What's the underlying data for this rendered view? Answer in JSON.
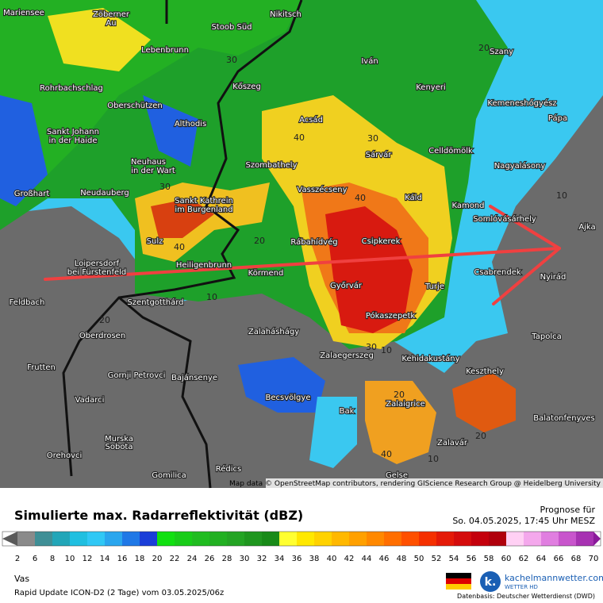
{
  "map": {
    "labels": [
      "Mariensee",
      "Zöberner",
      "Au",
      "Stoob Süd",
      "Nikitsch",
      "Lebenbrunn",
      "Iván",
      "Szany",
      "Rohrbachschlag",
      "Kőszeg",
      "Kenyeri",
      "Oberschützen",
      "Kemeneshőgyész",
      "Acsád",
      "Althodis",
      "Pápa",
      "Sankt Johann",
      "in der Haide",
      "Neuhaus",
      "in der Wart",
      "Szombathely",
      "Sárvár",
      "Celldömölk",
      "Nagyalásony",
      "Vasszécseny",
      "Neudauberg",
      "Großhart",
      "Sankt Kathrein",
      "im Burgenland",
      "Káld",
      "Kamond",
      "Somlóvásárhely",
      "Ajka",
      "Sulz",
      "Rábahídvég",
      "Csipkerek",
      "Heiligenbrunn",
      "Loipersdorf",
      "bei Fürstenfeld",
      "Körmend",
      "Csabrendek",
      "Nyirád",
      "Győrvár",
      "Turje",
      "Feldbach",
      "Szentgotthárd",
      "Pókaszepetk",
      "Oberdrosen",
      "Zalaháshágy",
      "Tapolca",
      "Zalaegerszeg",
      "Kehidakustány",
      "Frutten",
      "Gornji Petrovci",
      "Bajánsenye",
      "Keszthely",
      "Becsvölgye",
      "Vadarci",
      "Zalaigrice",
      "Balatonfenyves",
      "Bak",
      "Murska",
      "Sobota",
      "Zalavár",
      "Orehovci",
      "Rédics",
      "Gomilica",
      "Gelse"
    ],
    "isolines": [
      "30",
      "30",
      "40",
      "30",
      "40",
      "40",
      "20",
      "10",
      "20",
      "30",
      "10",
      "20",
      "40",
      "10",
      "20",
      "10",
      "20"
    ],
    "attribution": "Map data © OpenStreetMap contributors, rendering GIScience Research Group @ Heidelberg University"
  },
  "legend": {
    "title": "Simulierte max. Radarreflektivität (dBZ)",
    "forecast_label": "Prognose für",
    "forecast_time": "So. 04.05.2025, 17:45 Uhr MESZ",
    "region": "Vas",
    "model_run": "Rapid Update ICON-D2 (2 Tage) vom  03.05.2025/06z",
    "labels": [
      2,
      6,
      8,
      10,
      12,
      14,
      16,
      18,
      20,
      22,
      24,
      26,
      28,
      30,
      32,
      34,
      36,
      38,
      40,
      42,
      44,
      46,
      48,
      50,
      52,
      54,
      56,
      58,
      60,
      62,
      64,
      66,
      68,
      70
    ],
    "colors": [
      "#5a5a5a",
      "#8a8a8a",
      "#3f8f96",
      "#22a6b8",
      "#20bfe0",
      "#30c8f5",
      "#2aa6ee",
      "#1f78e6",
      "#1a3ed8",
      "#10e010",
      "#18cc18",
      "#20bc20",
      "#22b022",
      "#24a424",
      "#1f961f",
      "#188a18",
      "#ffff30",
      "#ffe800",
      "#ffd200",
      "#ffb800",
      "#ffa000",
      "#ff8800",
      "#ff6e00",
      "#ff5000",
      "#f53000",
      "#e41a08",
      "#d40c0c",
      "#c4000c",
      "#b0000c",
      "#ffd0f4",
      "#f4a8ec",
      "#e07ee0",
      "#c855cc",
      "#a732b2",
      "#8a1a9a"
    ]
  },
  "branding": {
    "site": "kachelmannwetter.com",
    "sub": "WETTER HD",
    "source": "Datenbasis: Deutscher Wetterdienst (DWD)"
  }
}
